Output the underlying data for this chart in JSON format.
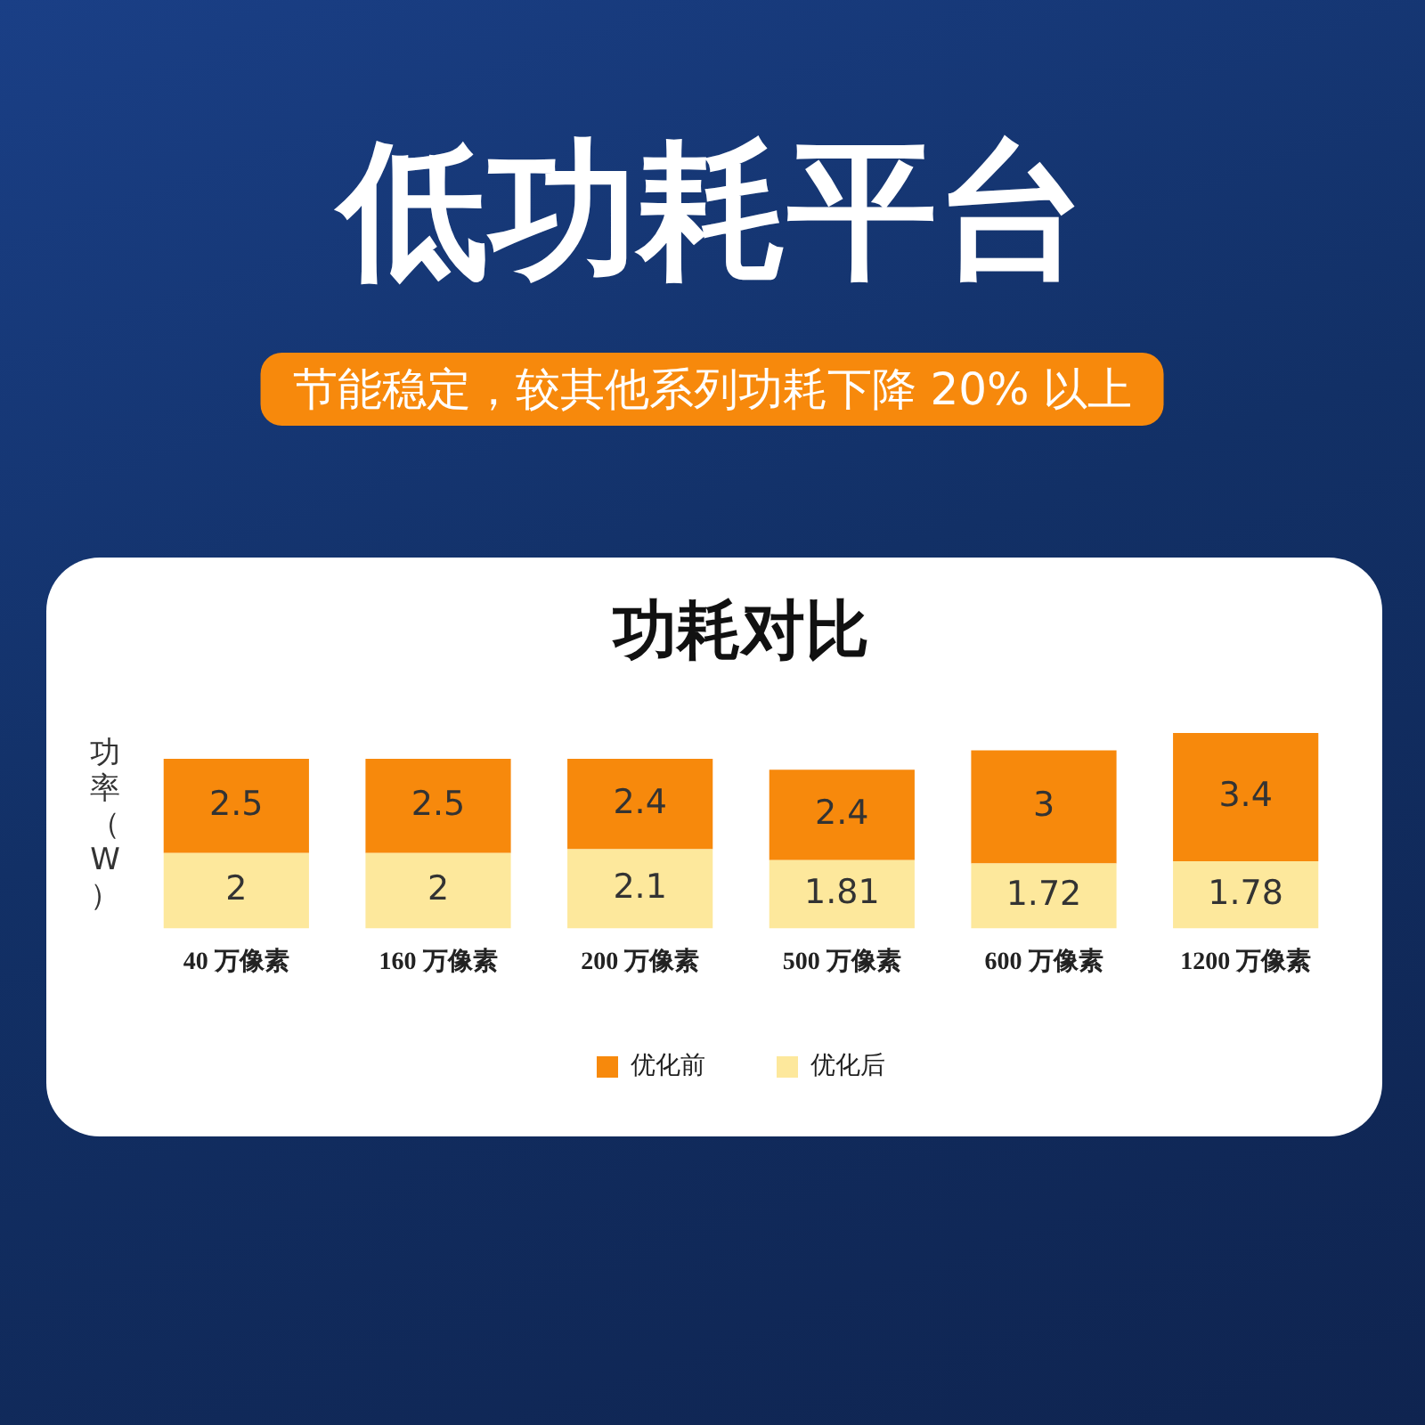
{
  "chart_data": {
    "type": "bar",
    "title": "低功耗平台",
    "subtitle": "节能稳定，较其他系列功耗下降 20% 以上",
    "annotations": [
      "功耗对比"
    ],
    "ylabel": "功率（W）",
    "categories": [
      "40 万像素",
      "160 万像素",
      "200 万像素",
      "500 万像素",
      "600 万像素",
      "1200 万像素"
    ],
    "stacked": true,
    "data_labels": true,
    "legend": "bottom",
    "tick_labels": "x",
    "series": [
      {
        "name": "优化后",
        "color": "#fde89c",
        "values": [
          2,
          2,
          2.1,
          1.81,
          1.72,
          1.78
        ]
      },
      {
        "name": "优化前",
        "color": "#f7890c",
        "values": [
          2.5,
          2.5,
          2.4,
          2.4,
          3,
          3.4
        ]
      }
    ]
  }
}
